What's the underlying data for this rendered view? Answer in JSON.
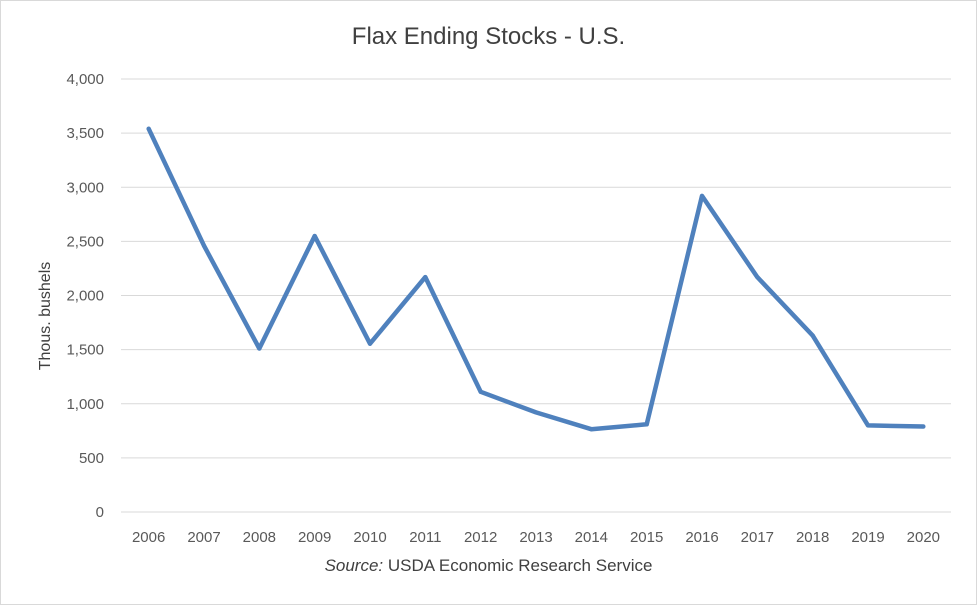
{
  "chart_data": {
    "type": "line",
    "title": "Flax Ending Stocks - U.S.",
    "xlabel": "",
    "ylabel": "Thous. bushels",
    "source_prefix": "Source:",
    "source_text": " USDA Economic Research Service",
    "categories": [
      "2006",
      "2007",
      "2008",
      "2009",
      "2010",
      "2011",
      "2012",
      "2013",
      "2014",
      "2015",
      "2016",
      "2017",
      "2018",
      "2019",
      "2020"
    ],
    "series": [
      {
        "values": [
          3540,
          2460,
          1510,
          2550,
          1555,
          2170,
          1110,
          920,
          765,
          810,
          2920,
          2170,
          1630,
          800,
          790
        ]
      }
    ],
    "ylim": [
      0,
      4000
    ],
    "yticks": [
      0,
      500,
      1000,
      1500,
      2000,
      2500,
      3000,
      3500,
      4000
    ],
    "ytick_labels": [
      "0",
      "500",
      "1,000",
      "1,500",
      "2,000",
      "2,500",
      "3,000",
      "3,500",
      "4,000"
    ],
    "grid": true,
    "legend": false,
    "line_color": "#4f81bd",
    "grid_color": "#d9d9d9"
  }
}
